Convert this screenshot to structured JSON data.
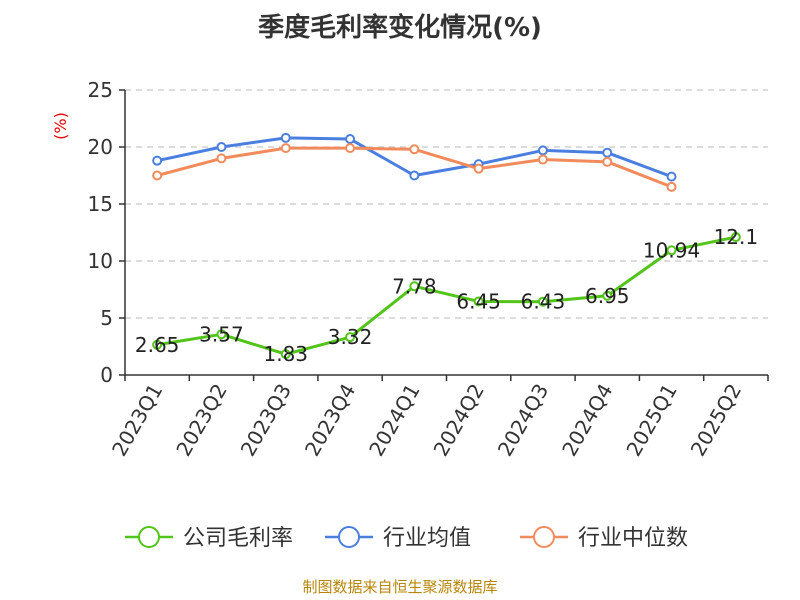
{
  "chart_data": {
    "type": "line",
    "title": "季度毛利率变化情况(%)",
    "ylabel": "(%)",
    "xlabel": "",
    "ylim": [
      0,
      25
    ],
    "yticks": [
      0,
      5,
      10,
      15,
      20,
      25
    ],
    "grid": true,
    "legend_position": "bottom",
    "categories": [
      "2023Q1",
      "2023Q2",
      "2023Q3",
      "2023Q4",
      "2024Q1",
      "2024Q2",
      "2024Q3",
      "2024Q4",
      "2025Q1",
      "2025Q2"
    ],
    "series": [
      {
        "name": "公司毛利率",
        "color": "#52c41a",
        "values": [
          2.65,
          3.57,
          1.83,
          3.32,
          7.78,
          6.45,
          6.43,
          6.95,
          10.94,
          12.1
        ],
        "labels": [
          "2.65",
          "3.57",
          "1.83",
          "3.32",
          "7.78",
          "6.45",
          "6.43",
          "6.95",
          "10.94",
          "12.1"
        ]
      },
      {
        "name": "行业均值",
        "color": "#4a7fe0",
        "values": [
          18.8,
          20.0,
          20.8,
          20.7,
          17.5,
          18.5,
          19.7,
          19.5,
          17.4,
          null
        ]
      },
      {
        "name": "行业中位数",
        "color": "#f28b5b",
        "values": [
          17.5,
          19.0,
          19.9,
          19.9,
          19.8,
          18.1,
          18.9,
          18.7,
          16.5,
          null
        ]
      }
    ]
  },
  "footer": {
    "source": "制图数据来自恒生聚源数据库"
  }
}
